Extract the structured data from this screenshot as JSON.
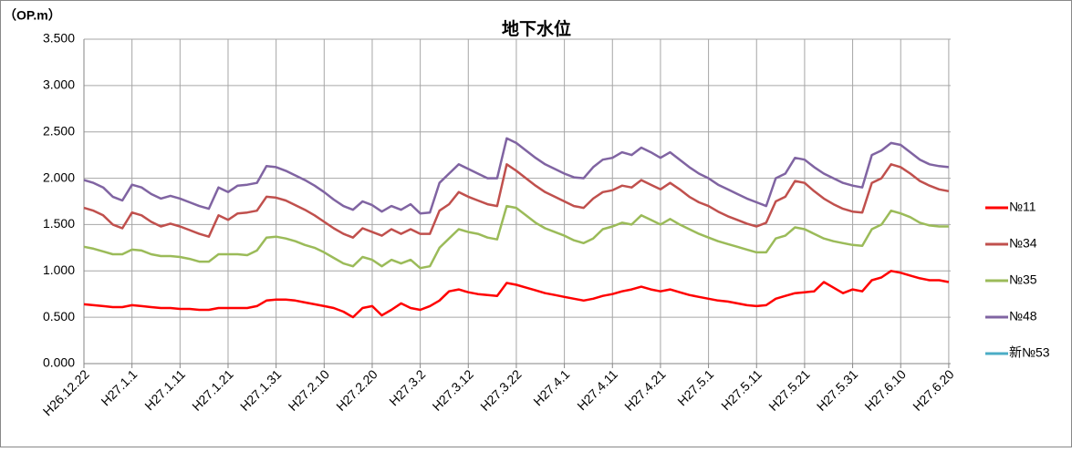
{
  "chart_data": {
    "type": "line",
    "title": "地下水位",
    "y_label": "（OP.m）",
    "categories": [
      "H26.12.22",
      null,
      null,
      null,
      null,
      "H27.1.1",
      null,
      null,
      null,
      null,
      "H27.1.11",
      null,
      null,
      null,
      null,
      "H27.1.21",
      null,
      null,
      null,
      null,
      "H27.1.31",
      null,
      null,
      null,
      null,
      "H27.2.10",
      null,
      null,
      null,
      null,
      "H27.2.20",
      null,
      null,
      null,
      null,
      "H27.3.2",
      null,
      null,
      null,
      null,
      "H27.3.12",
      null,
      null,
      null,
      null,
      "H27.3.22",
      null,
      null,
      null,
      null,
      "H27.4.1",
      null,
      null,
      null,
      null,
      "H27.4.11",
      null,
      null,
      null,
      null,
      "H27.4.21",
      null,
      null,
      null,
      null,
      "H27.5.1",
      null,
      null,
      null,
      null,
      "H27.5.11",
      null,
      null,
      null,
      null,
      "H27.5.21",
      null,
      null,
      null,
      null,
      "H27.5.31",
      null,
      null,
      null,
      null,
      "H27.6.10",
      null,
      null,
      null,
      null,
      "H27.6.20"
    ],
    "series": [
      {
        "name": "№11",
        "color": "#ff0000",
        "values": [
          0.64,
          0.63,
          0.62,
          0.61,
          0.61,
          0.63,
          0.62,
          0.61,
          0.6,
          0.6,
          0.59,
          0.59,
          0.58,
          0.58,
          0.6,
          0.6,
          0.6,
          0.6,
          0.62,
          0.68,
          0.69,
          0.69,
          0.68,
          0.66,
          0.64,
          0.62,
          0.6,
          0.56,
          0.5,
          0.6,
          0.62,
          0.52,
          0.58,
          0.65,
          0.6,
          0.58,
          0.62,
          0.68,
          0.78,
          0.8,
          0.77,
          0.75,
          0.74,
          0.73,
          0.87,
          0.85,
          0.82,
          0.79,
          0.76,
          0.74,
          0.72,
          0.7,
          0.68,
          0.7,
          0.73,
          0.75,
          0.78,
          0.8,
          0.83,
          0.8,
          0.78,
          0.8,
          0.77,
          0.74,
          0.72,
          0.7,
          0.68,
          0.67,
          0.65,
          0.63,
          0.62,
          0.63,
          0.7,
          0.73,
          0.76,
          0.77,
          0.78,
          0.88,
          0.82,
          0.76,
          0.8,
          0.78,
          0.9,
          0.93,
          1.0,
          0.98,
          0.95,
          0.92,
          0.9,
          0.9,
          0.88
        ]
      },
      {
        "name": "№34",
        "color": "#c0504d",
        "values": [
          1.68,
          1.65,
          1.6,
          1.5,
          1.46,
          1.63,
          1.6,
          1.53,
          1.48,
          1.51,
          1.48,
          1.44,
          1.4,
          1.37,
          1.6,
          1.55,
          1.62,
          1.63,
          1.65,
          1.8,
          1.79,
          1.76,
          1.71,
          1.66,
          1.6,
          1.53,
          1.46,
          1.4,
          1.36,
          1.46,
          1.42,
          1.38,
          1.45,
          1.4,
          1.45,
          1.4,
          1.4,
          1.65,
          1.72,
          1.85,
          1.8,
          1.76,
          1.72,
          1.7,
          2.15,
          2.08,
          2.0,
          1.92,
          1.85,
          1.8,
          1.75,
          1.7,
          1.68,
          1.78,
          1.85,
          1.87,
          1.92,
          1.9,
          1.98,
          1.93,
          1.88,
          1.95,
          1.88,
          1.8,
          1.74,
          1.7,
          1.64,
          1.59,
          1.55,
          1.51,
          1.48,
          1.52,
          1.75,
          1.8,
          1.97,
          1.95,
          1.86,
          1.78,
          1.72,
          1.67,
          1.64,
          1.63,
          1.95,
          2.0,
          2.15,
          2.12,
          2.05,
          1.97,
          1.92,
          1.88,
          1.86
        ]
      },
      {
        "name": "№35",
        "color": "#9bbb59",
        "values": [
          1.26,
          1.24,
          1.21,
          1.18,
          1.18,
          1.23,
          1.22,
          1.18,
          1.16,
          1.16,
          1.15,
          1.13,
          1.1,
          1.1,
          1.18,
          1.18,
          1.18,
          1.17,
          1.22,
          1.36,
          1.37,
          1.35,
          1.32,
          1.28,
          1.25,
          1.2,
          1.14,
          1.08,
          1.05,
          1.15,
          1.12,
          1.05,
          1.12,
          1.08,
          1.12,
          1.03,
          1.05,
          1.25,
          1.35,
          1.45,
          1.42,
          1.4,
          1.36,
          1.34,
          1.7,
          1.68,
          1.6,
          1.52,
          1.46,
          1.42,
          1.38,
          1.33,
          1.3,
          1.35,
          1.45,
          1.48,
          1.52,
          1.5,
          1.6,
          1.55,
          1.5,
          1.56,
          1.5,
          1.45,
          1.4,
          1.36,
          1.32,
          1.29,
          1.26,
          1.23,
          1.2,
          1.2,
          1.35,
          1.38,
          1.47,
          1.45,
          1.4,
          1.35,
          1.32,
          1.3,
          1.28,
          1.27,
          1.45,
          1.5,
          1.65,
          1.62,
          1.58,
          1.52,
          1.49,
          1.48,
          1.48
        ]
      },
      {
        "name": "№48",
        "color": "#8064a2",
        "values": [
          1.98,
          1.95,
          1.9,
          1.8,
          1.76,
          1.93,
          1.9,
          1.83,
          1.78,
          1.81,
          1.78,
          1.74,
          1.7,
          1.67,
          1.9,
          1.85,
          1.92,
          1.93,
          1.95,
          2.13,
          2.12,
          2.08,
          2.03,
          1.98,
          1.92,
          1.85,
          1.77,
          1.7,
          1.66,
          1.75,
          1.71,
          1.64,
          1.7,
          1.66,
          1.72,
          1.62,
          1.63,
          1.95,
          2.05,
          2.15,
          2.1,
          2.05,
          2.0,
          2.0,
          2.43,
          2.38,
          2.3,
          2.22,
          2.15,
          2.1,
          2.05,
          2.01,
          2.0,
          2.12,
          2.2,
          2.22,
          2.28,
          2.25,
          2.33,
          2.28,
          2.22,
          2.28,
          2.2,
          2.12,
          2.05,
          2.0,
          1.93,
          1.88,
          1.83,
          1.78,
          1.74,
          1.7,
          2.0,
          2.05,
          2.22,
          2.2,
          2.12,
          2.05,
          2.0,
          1.95,
          1.92,
          1.9,
          2.25,
          2.3,
          2.38,
          2.36,
          2.28,
          2.2,
          2.15,
          2.13,
          2.12
        ]
      },
      {
        "name": "新№53",
        "color": "#4bacc6",
        "values": [
          null,
          null,
          null,
          null,
          null,
          null,
          null,
          null,
          null,
          null,
          null,
          null,
          null,
          null,
          null,
          null,
          null,
          null,
          null,
          null,
          null,
          null,
          null,
          null,
          null,
          null,
          null,
          null,
          null,
          null,
          null,
          null,
          null,
          null,
          null,
          null,
          null,
          null,
          null,
          null,
          null,
          null,
          null,
          null,
          null,
          null,
          null,
          null,
          null,
          null,
          null,
          null,
          null,
          null,
          null,
          null,
          null,
          null,
          null,
          null,
          null,
          null,
          null,
          null,
          null,
          null,
          null,
          null,
          null,
          null,
          null,
          null,
          null,
          null,
          null,
          null,
          null,
          null,
          null,
          null,
          null,
          null,
          null,
          null,
          null,
          null,
          null,
          null,
          null,
          null,
          null
        ]
      }
    ],
    "ylim": [
      0,
      3.5
    ],
    "yticks": [
      {
        "value": 0,
        "label": "0.000"
      },
      {
        "value": 0.5,
        "label": "0.500"
      },
      {
        "value": 1,
        "label": "1.000"
      },
      {
        "value": 1.5,
        "label": "1.500"
      },
      {
        "value": 2,
        "label": "2.000"
      },
      {
        "value": 2.5,
        "label": "2.500"
      },
      {
        "value": 3,
        "label": "3.000"
      },
      {
        "value": 3.5,
        "label": "3.500"
      }
    ],
    "grid": true,
    "legend": "right"
  }
}
